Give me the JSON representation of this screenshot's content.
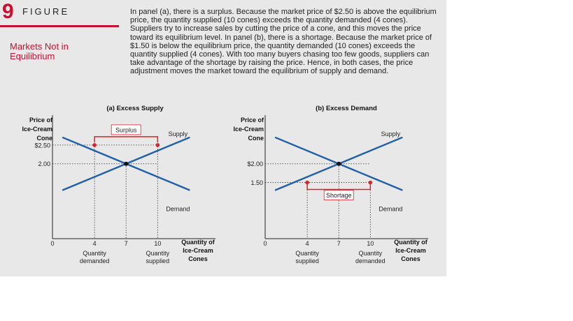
{
  "figure": {
    "number": "9",
    "label": "FIGURE",
    "title": "Markets Not in Equilibrium",
    "caption": "In panel (a), there is a surplus. Because the market price of $2.50 is above the equilibrium price, the quantity supplied (10 cones) exceeds the quantity demanded (4 cones). Suppliers try to increase sales by cutting the price of a cone, and this moves the price toward its equilibrium level. In panel (b), there is a shortage. Because the market price of $1.50 is below the equilibrium price, the quantity demanded (10 cones) exceeds the quantity supplied (4 cones). With too many buyers chasing too few goods, suppliers can take advantage of the shortage by raising the price. Hence, in both cases, the price adjustment moves the market toward the equilibrium of supply and demand."
  },
  "colors": {
    "accent": "#c8102e",
    "curve": "#1f5fa8",
    "point": "#e0202a",
    "panel_bg": "#e8e8e8"
  },
  "chart_data": [
    {
      "type": "line",
      "title": "(a) Excess Supply",
      "ylabel": "Price of Ice-Cream Cone",
      "xlabel": "Quantity of Ice-Cream Cones",
      "origin_label": "0",
      "x_ticks": [
        {
          "value": 4,
          "label": "4",
          "caption": "Quantity demanded"
        },
        {
          "value": 7,
          "label": "7",
          "caption": ""
        },
        {
          "value": 10,
          "label": "10",
          "caption": "Quantity supplied"
        }
      ],
      "y_ticks": [
        {
          "value": 2.5,
          "label": "$2.50"
        },
        {
          "value": 2.0,
          "label": "2.00"
        }
      ],
      "xlim": [
        0,
        15.5
      ],
      "ylim": [
        0,
        3.3
      ],
      "series": [
        {
          "name": "Supply",
          "kind": "supply",
          "x": [
            1,
            13
          ],
          "y": [
            1.3,
            2.7
          ]
        },
        {
          "name": "Demand",
          "kind": "demand",
          "x": [
            1,
            13
          ],
          "y": [
            2.7,
            1.3
          ]
        }
      ],
      "equilibrium": {
        "x": 7,
        "y": 2.0
      },
      "market_price": 2.5,
      "points": [
        {
          "x": 4,
          "y": 2.5
        },
        {
          "x": 10,
          "y": 2.5
        }
      ],
      "bracket": {
        "label": "Surplus",
        "from": 4,
        "to": 10,
        "position": "above"
      }
    },
    {
      "type": "line",
      "title": "(b) Excess Demand",
      "ylabel": "Price of Ice-Cream Cone",
      "xlabel": "Quantity of Ice-Cream Cones",
      "origin_label": "0",
      "x_ticks": [
        {
          "value": 4,
          "label": "4",
          "caption": "Quantity supplied"
        },
        {
          "value": 7,
          "label": "7",
          "caption": ""
        },
        {
          "value": 10,
          "label": "10",
          "caption": "Quantity demanded"
        }
      ],
      "y_ticks": [
        {
          "value": 2.0,
          "label": "$2.00"
        },
        {
          "value": 1.5,
          "label": "1.50"
        }
      ],
      "xlim": [
        0,
        15.5
      ],
      "ylim": [
        0,
        3.3
      ],
      "series": [
        {
          "name": "Supply",
          "kind": "supply",
          "x": [
            1,
            13
          ],
          "y": [
            1.3,
            2.7
          ]
        },
        {
          "name": "Demand",
          "kind": "demand",
          "x": [
            1,
            13
          ],
          "y": [
            2.7,
            1.3
          ]
        }
      ],
      "equilibrium": {
        "x": 7,
        "y": 2.0
      },
      "market_price": 1.5,
      "points": [
        {
          "x": 4,
          "y": 1.5
        },
        {
          "x": 10,
          "y": 1.5
        }
      ],
      "bracket": {
        "label": "Shortage",
        "from": 4,
        "to": 10,
        "position": "below"
      }
    }
  ]
}
